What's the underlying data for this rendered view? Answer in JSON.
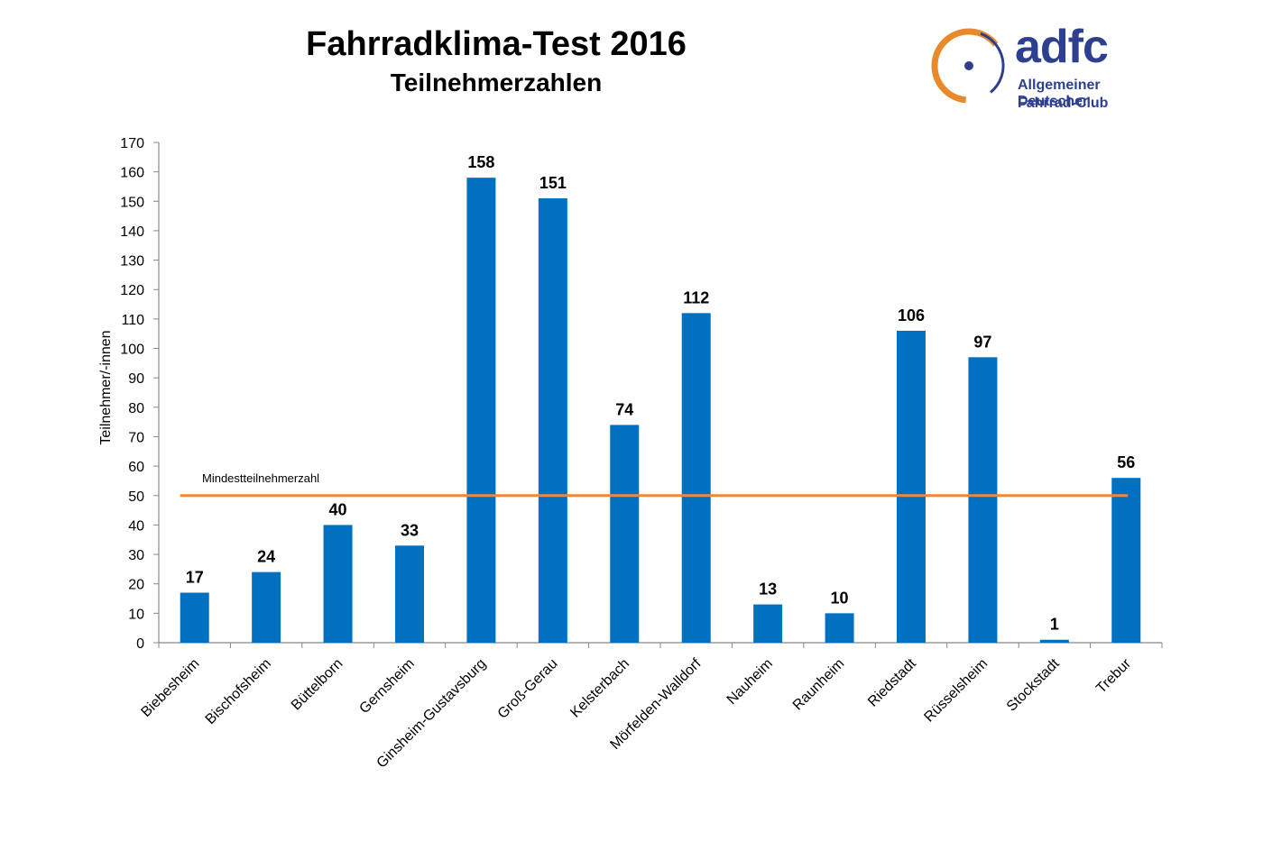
{
  "header": {
    "title": "Fahrradklima-Test 2016",
    "subtitle": "Teilnehmerzahlen"
  },
  "logo": {
    "wordmark": "adfc",
    "line1": "Allgemeiner Deutscher",
    "line2": "Fahrrad-Club",
    "colors": {
      "ring": "#e8892b",
      "text": "#2f3f8f"
    }
  },
  "chart_data": {
    "type": "bar",
    "categories": [
      "Biebesheim",
      "Bischofsheim",
      "Büttelborn",
      "Gernsheim",
      "Ginsheim-Gustavsburg",
      "Groß-Gerau",
      "Kelsterbach",
      "Mörfelden-Walldorf",
      "Nauheim",
      "Raunheim",
      "Riedstadt",
      "Rüsselsheim",
      "Stockstadt",
      "Trebur"
    ],
    "values": [
      17,
      24,
      40,
      33,
      158,
      151,
      74,
      112,
      13,
      10,
      106,
      97,
      1,
      56
    ],
    "ylabel": "Teilnehmer/-innen",
    "xlabel": "",
    "ylim": [
      0,
      170
    ],
    "yticks": [
      0,
      10,
      20,
      30,
      40,
      50,
      60,
      70,
      80,
      90,
      100,
      110,
      120,
      130,
      140,
      150,
      160,
      170
    ],
    "data_labels": true,
    "grid": false,
    "bar_color": "#0070c0",
    "reference_line": {
      "label": "Mindestteilnehmerzahl",
      "value": 50,
      "color": "#f0883a"
    }
  }
}
